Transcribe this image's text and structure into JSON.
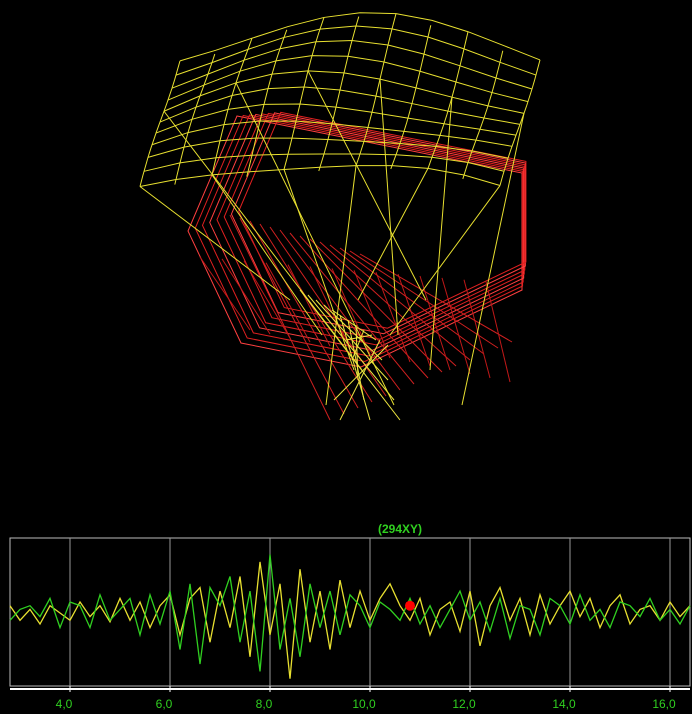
{
  "chart_data": {
    "type": "line",
    "title": "(294XY)",
    "x": [
      2.8,
      3.0,
      3.2,
      3.4,
      3.6,
      3.8,
      4.0,
      4.2,
      4.4,
      4.6,
      4.8,
      5.0,
      5.2,
      5.4,
      5.6,
      5.8,
      6.0,
      6.2,
      6.4,
      6.6,
      6.8,
      7.0,
      7.2,
      7.4,
      7.6,
      7.8,
      8.0,
      8.2,
      8.4,
      8.6,
      8.8,
      9.0,
      9.2,
      9.4,
      9.6,
      9.8,
      10.0,
      10.2,
      10.4,
      10.6,
      10.8,
      11.0,
      11.2,
      11.4,
      11.6,
      11.8,
      12.0,
      12.2,
      12.4,
      12.6,
      12.8,
      13.0,
      13.2,
      13.4,
      13.6,
      13.8,
      14.0,
      14.2,
      14.4,
      14.6,
      14.8,
      15.0,
      15.2,
      15.4,
      15.6,
      15.8,
      16.0,
      16.2,
      16.4
    ],
    "series": [
      {
        "color": "#e8e030",
        "values": [
          0.1,
          -0.1,
          0.05,
          -0.15,
          0.1,
          0.0,
          -0.1,
          0.15,
          -0.05,
          0.1,
          -0.12,
          0.2,
          -0.1,
          0.15,
          -0.2,
          0.1,
          0.25,
          -0.3,
          0.2,
          0.35,
          -0.4,
          0.3,
          -0.2,
          0.5,
          -0.6,
          0.7,
          -0.3,
          0.4,
          -0.9,
          0.6,
          -0.4,
          0.3,
          -0.5,
          0.45,
          -0.2,
          0.3,
          -0.1,
          0.2,
          0.4,
          0.1,
          -0.1,
          0.2,
          -0.3,
          0.05,
          0.15,
          -0.25,
          0.3,
          -0.45,
          0.1,
          0.35,
          -0.1,
          0.2,
          -0.3,
          0.25,
          -0.15,
          0.1,
          0.3,
          -0.05,
          0.2,
          -0.2,
          0.1,
          0.25,
          -0.15,
          0.05,
          0.1,
          -0.1,
          0.15,
          -0.05,
          0.1
        ]
      },
      {
        "color": "#30d020",
        "values": [
          -0.1,
          0.05,
          0.1,
          -0.05,
          0.2,
          -0.2,
          0.15,
          0.1,
          -0.2,
          0.25,
          -0.1,
          0.05,
          0.2,
          -0.3,
          0.25,
          -0.15,
          0.3,
          -0.5,
          0.4,
          -0.7,
          0.35,
          0.1,
          0.5,
          -0.4,
          0.3,
          -0.8,
          0.8,
          -0.5,
          0.2,
          -0.6,
          0.4,
          -0.2,
          0.3,
          -0.3,
          0.25,
          0.1,
          -0.2,
          0.15,
          0.05,
          -0.1,
          0.2,
          -0.15,
          0.1,
          -0.2,
          0.05,
          0.3,
          -0.1,
          0.15,
          -0.25,
          0.2,
          -0.35,
          0.1,
          0.05,
          -0.3,
          0.2,
          0.1,
          -0.15,
          0.25,
          -0.1,
          0.05,
          -0.2,
          0.15,
          0.1,
          -0.05,
          0.2,
          -0.1,
          0.05,
          -0.15,
          0.1
        ]
      }
    ],
    "marker": {
      "x": 10.8,
      "y": 0.1,
      "color": "#ff0000"
    },
    "xlim": [
      2.8,
      16.4
    ],
    "xticks": [
      {
        "value": 4,
        "label": "4,0"
      },
      {
        "value": 6,
        "label": "6,0"
      },
      {
        "value": 8,
        "label": "8,0"
      },
      {
        "value": 10,
        "label": "10,0"
      },
      {
        "value": 12,
        "label": "12,0"
      },
      {
        "value": 14,
        "label": "14,0"
      },
      {
        "value": 16,
        "label": "16,0"
      }
    ],
    "ylim": [
      -1,
      1
    ],
    "grid": true
  }
}
